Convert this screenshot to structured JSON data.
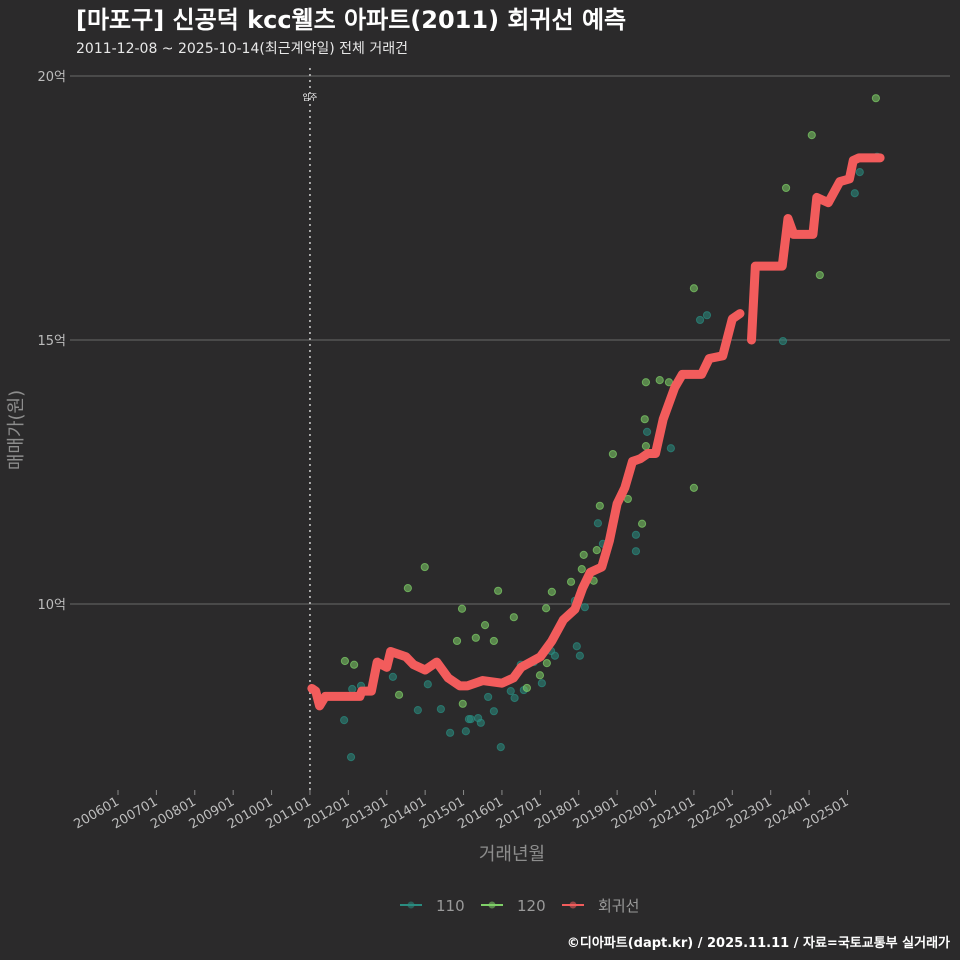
{
  "chart_data": {
    "type": "scatter",
    "title": "[마포구] 신공덕 kcc웰츠 아파트(2011) 회귀선 예측",
    "subtitle": "2011-12-08 ~ 2025-10-14(최근계약일) 전체 거래건",
    "xlabel": "거래년월",
    "ylabel": "매매가(원)",
    "caption": "©디아파트(dapt.kr) / 2025.11.11 / 자료=국토교통부 실거래가",
    "xlim": [
      2004.75,
      2027.67
    ],
    "ylim": [
      6.5,
      21.0
    ],
    "grid": true,
    "y_ticks": [
      {
        "value": 10,
        "label": "10억"
      },
      {
        "value": 15,
        "label": "15억"
      },
      {
        "value": 20,
        "label": "20억"
      }
    ],
    "x_ticks": [
      {
        "value": 2006,
        "label": "200601"
      },
      {
        "value": 2007,
        "label": "200701"
      },
      {
        "value": 2008,
        "label": "200801"
      },
      {
        "value": 2009,
        "label": "200901"
      },
      {
        "value": 2010,
        "label": "201001"
      },
      {
        "value": 2011,
        "label": "201101"
      },
      {
        "value": 2012,
        "label": "201201"
      },
      {
        "value": 2013,
        "label": "201301"
      },
      {
        "value": 2014,
        "label": "201401"
      },
      {
        "value": 2015,
        "label": "201501"
      },
      {
        "value": 2016,
        "label": "201601"
      },
      {
        "value": 2017,
        "label": "201701"
      },
      {
        "value": 2018,
        "label": "201801"
      },
      {
        "value": 2019,
        "label": "201901"
      },
      {
        "value": 2020,
        "label": "202001"
      },
      {
        "value": 2021,
        "label": "202101"
      },
      {
        "value": 2022,
        "label": "202201"
      },
      {
        "value": 2023,
        "label": "202301"
      },
      {
        "value": 2024,
        "label": "202401"
      },
      {
        "value": 2025,
        "label": "202501"
      }
    ],
    "annotation": {
      "x": 2011.0,
      "label": "입주"
    },
    "legend": {
      "placement": "bottom",
      "entries": [
        {
          "name": "110",
          "color": "#2a8c80"
        },
        {
          "name": "120",
          "color": "#7fd068"
        },
        {
          "name": "회귀선",
          "color": "#f25c5c"
        }
      ]
    },
    "series": [
      {
        "name": "110",
        "type": "scatter",
        "color": "#2a8c80",
        "points": [
          [
            2011.89,
            7.8
          ],
          [
            2012.07,
            7.1
          ],
          [
            2012.1,
            8.39
          ],
          [
            2012.33,
            8.45
          ],
          [
            2013.16,
            8.62
          ],
          [
            2013.81,
            7.99
          ],
          [
            2014.07,
            8.48
          ],
          [
            2014.41,
            8.01
          ],
          [
            2014.65,
            7.56
          ],
          [
            2015.06,
            7.59
          ],
          [
            2015.14,
            7.82
          ],
          [
            2015.19,
            7.82
          ],
          [
            2015.38,
            7.84
          ],
          [
            2015.45,
            7.75
          ],
          [
            2015.64,
            8.24
          ],
          [
            2015.79,
            7.97
          ],
          [
            2015.97,
            7.29
          ],
          [
            2016.23,
            8.35
          ],
          [
            2016.33,
            8.22
          ],
          [
            2016.49,
            8.85
          ],
          [
            2016.57,
            8.37
          ],
          [
            2016.83,
            8.9
          ],
          [
            2017.04,
            8.5
          ],
          [
            2017.28,
            9.11
          ],
          [
            2017.38,
            9.02
          ],
          [
            2017.9,
            10.06
          ],
          [
            2017.95,
            9.2
          ],
          [
            2018.03,
            9.02
          ],
          [
            2018.16,
            9.94
          ],
          [
            2018.5,
            11.53
          ],
          [
            2018.63,
            11.14
          ],
          [
            2019.49,
            11.31
          ],
          [
            2019.49,
            11.0
          ],
          [
            2019.78,
            13.26
          ],
          [
            2020.4,
            12.95
          ],
          [
            2021.16,
            15.38
          ],
          [
            2021.34,
            15.47
          ],
          [
            2023.32,
            14.98
          ],
          [
            2025.19,
            17.78
          ],
          [
            2025.32,
            18.18
          ],
          [
            2025.77,
            18.47
          ]
        ]
      },
      {
        "name": "120",
        "type": "scatter",
        "color": "#7fd068",
        "points": [
          [
            2011.91,
            8.92
          ],
          [
            2012.15,
            8.85
          ],
          [
            2013.32,
            8.28
          ],
          [
            2013.55,
            10.3
          ],
          [
            2013.99,
            10.7
          ],
          [
            2014.83,
            9.3
          ],
          [
            2014.96,
            9.91
          ],
          [
            2014.98,
            8.11
          ],
          [
            2015.32,
            9.36
          ],
          [
            2015.56,
            9.6
          ],
          [
            2015.79,
            9.3
          ],
          [
            2015.9,
            10.25
          ],
          [
            2016.31,
            9.75
          ],
          [
            2016.65,
            8.41
          ],
          [
            2016.99,
            8.65
          ],
          [
            2017.15,
            9.92
          ],
          [
            2017.17,
            8.88
          ],
          [
            2017.3,
            10.23
          ],
          [
            2017.8,
            10.42
          ],
          [
            2018.08,
            10.66
          ],
          [
            2018.13,
            10.93
          ],
          [
            2018.21,
            10.45
          ],
          [
            2018.39,
            10.44
          ],
          [
            2018.47,
            11.02
          ],
          [
            2018.55,
            11.86
          ],
          [
            2018.89,
            12.84
          ],
          [
            2019.28,
            11.99
          ],
          [
            2019.65,
            11.52
          ],
          [
            2019.72,
            13.5
          ],
          [
            2019.75,
            12.99
          ],
          [
            2019.75,
            14.2
          ],
          [
            2020.11,
            14.24
          ],
          [
            2020.35,
            14.2
          ],
          [
            2021.0,
            15.98
          ],
          [
            2021.0,
            12.2
          ],
          [
            2023.4,
            17.88
          ],
          [
            2024.07,
            18.88
          ],
          [
            2024.28,
            16.23
          ],
          [
            2025.74,
            19.58
          ]
        ]
      },
      {
        "name": "회귀선",
        "type": "line",
        "color": "#f25c5c",
        "segments": [
          [
            [
              2011.05,
              8.4
            ],
            [
              2011.15,
              8.35
            ],
            [
              2011.25,
              8.07
            ],
            [
              2011.4,
              8.25
            ],
            [
              2012.3,
              8.25
            ],
            [
              2012.35,
              8.35
            ],
            [
              2012.6,
              8.35
            ],
            [
              2012.75,
              8.9
            ],
            [
              2013.0,
              8.8
            ],
            [
              2013.1,
              9.1
            ],
            [
              2013.5,
              9.0
            ],
            [
              2013.7,
              8.85
            ],
            [
              2014.0,
              8.75
            ],
            [
              2014.3,
              8.9
            ],
            [
              2014.6,
              8.6
            ],
            [
              2014.9,
              8.45
            ],
            [
              2015.1,
              8.45
            ],
            [
              2015.5,
              8.55
            ],
            [
              2016.0,
              8.5
            ],
            [
              2016.3,
              8.6
            ],
            [
              2016.5,
              8.8
            ],
            [
              2017.0,
              9.0
            ],
            [
              2017.3,
              9.3
            ],
            [
              2017.6,
              9.7
            ],
            [
              2017.9,
              9.9
            ],
            [
              2018.1,
              10.3
            ],
            [
              2018.3,
              10.6
            ],
            [
              2018.6,
              10.7
            ],
            [
              2018.8,
              11.2
            ],
            [
              2019.0,
              11.9
            ],
            [
              2019.2,
              12.2
            ],
            [
              2019.4,
              12.7
            ],
            [
              2019.6,
              12.75
            ],
            [
              2019.8,
              12.85
            ],
            [
              2020.0,
              12.85
            ],
            [
              2020.2,
              13.5
            ],
            [
              2020.5,
              14.1
            ],
            [
              2020.7,
              14.35
            ],
            [
              2021.2,
              14.35
            ],
            [
              2021.4,
              14.65
            ],
            [
              2021.75,
              14.7
            ],
            [
              2022.0,
              15.4
            ],
            [
              2022.2,
              15.5
            ]
          ],
          [
            [
              2022.5,
              15.0
            ],
            [
              2022.6,
              16.4
            ],
            [
              2023.3,
              16.4
            ],
            [
              2023.45,
              17.3
            ],
            [
              2023.6,
              17.0
            ],
            [
              2024.1,
              17.0
            ],
            [
              2024.2,
              17.7
            ],
            [
              2024.5,
              17.6
            ],
            [
              2024.8,
              18.0
            ],
            [
              2025.05,
              18.05
            ],
            [
              2025.15,
              18.4
            ],
            [
              2025.3,
              18.45
            ],
            [
              2025.85,
              18.45
            ]
          ]
        ]
      }
    ]
  }
}
